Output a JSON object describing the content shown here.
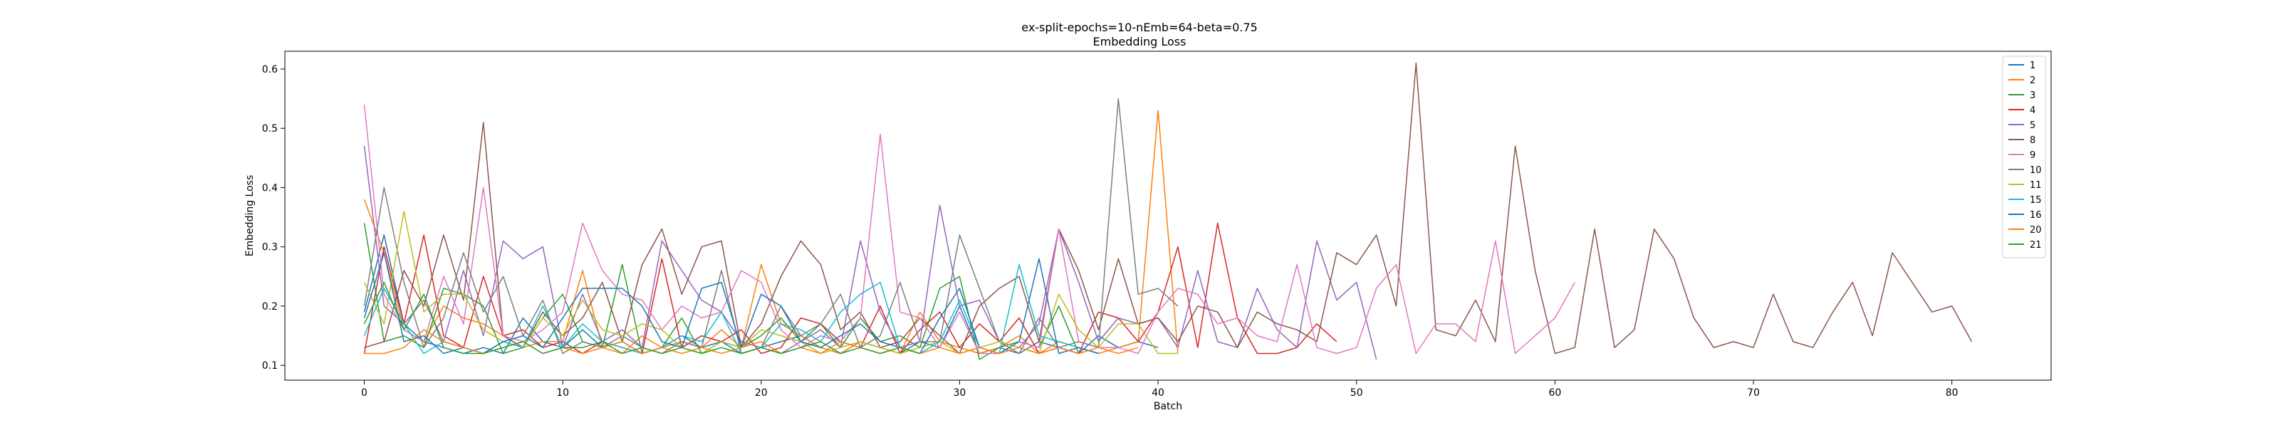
{
  "chart_data": {
    "type": "line",
    "title": "ex-split-epochs=10-nEmb=64-beta=0.75",
    "subtitle": "Embedding Loss",
    "xlabel": "Batch",
    "ylabel": "Embedding Loss",
    "xlim": [
      -4,
      85
    ],
    "ylim": [
      0.075,
      0.63
    ],
    "xticks": [
      0,
      10,
      20,
      30,
      40,
      50,
      60,
      70,
      80
    ],
    "yticks": [
      0.1,
      0.2,
      0.3,
      0.4,
      0.5,
      0.6
    ],
    "grid": false,
    "legend_position": "top-right",
    "series": [
      {
        "name": "1",
        "color": "#1f77b4",
        "values": [
          0.19,
          0.32,
          0.17,
          0.14,
          0.13,
          0.12,
          0.13,
          0.12,
          0.18,
          0.14,
          0.13,
          0.16,
          0.13,
          0.14,
          0.12,
          0.13,
          0.15,
          0.13,
          0.14,
          0.12,
          0.13,
          0.14,
          0.15,
          0.13,
          0.12,
          0.14,
          0.13,
          0.12,
          0.14,
          0.13,
          0.2,
          0.12,
          0.13,
          0.12,
          0.14,
          0.13,
          0.12,
          0.15,
          0.13,
          0.14,
          0.13
        ]
      },
      {
        "name": "2",
        "color": "#ff7f0e",
        "values": [
          0.38,
          0.29,
          0.16,
          0.14,
          0.2,
          0.18,
          0.17,
          0.15,
          0.13,
          0.14,
          0.14,
          0.26,
          0.13,
          0.12,
          0.15,
          0.13,
          0.14,
          0.13,
          0.16,
          0.13,
          0.27,
          0.17,
          0.15,
          0.13,
          0.12,
          0.14,
          0.13,
          0.12,
          0.19,
          0.14,
          0.13,
          0.12,
          0.13,
          0.15,
          0.12,
          0.14,
          0.13,
          0.12,
          0.13,
          0.14,
          0.53,
          0.12
        ]
      },
      {
        "name": "3",
        "color": "#2ca02c",
        "values": [
          0.34,
          0.14,
          0.15,
          0.13,
          0.23,
          0.22,
          0.2,
          0.12,
          0.13,
          0.18,
          0.22,
          0.14,
          0.13,
          0.27,
          0.12,
          0.13,
          0.18,
          0.12,
          0.14,
          0.13,
          0.15,
          0.18,
          0.14,
          0.17,
          0.13,
          0.18,
          0.14,
          0.15,
          0.13,
          0.23,
          0.25,
          0.11,
          0.13,
          0.14,
          0.13,
          0.2,
          0.12
        ]
      },
      {
        "name": "4",
        "color": "#d62728",
        "values": [
          0.12,
          0.3,
          0.17,
          0.32,
          0.15,
          0.13,
          0.25,
          0.15,
          0.16,
          0.13,
          0.14,
          0.12,
          0.14,
          0.13,
          0.12,
          0.28,
          0.13,
          0.15,
          0.14,
          0.16,
          0.12,
          0.13,
          0.18,
          0.17,
          0.14,
          0.13,
          0.2,
          0.12,
          0.16,
          0.19,
          0.13,
          0.17,
          0.14,
          0.18,
          0.12,
          0.13,
          0.12,
          0.19,
          0.18,
          0.14,
          0.19,
          0.3,
          0.13,
          0.34,
          0.18,
          0.12,
          0.12,
          0.13,
          0.17,
          0.14
        ]
      },
      {
        "name": "5",
        "color": "#9467bd",
        "values": [
          0.47,
          0.2,
          0.17,
          0.21,
          0.14,
          0.26,
          0.15,
          0.31,
          0.28,
          0.3,
          0.13,
          0.22,
          0.14,
          0.16,
          0.13,
          0.31,
          0.26,
          0.21,
          0.19,
          0.14,
          0.13,
          0.12,
          0.14,
          0.16,
          0.13,
          0.31,
          0.19,
          0.13,
          0.14,
          0.37,
          0.2,
          0.21,
          0.14,
          0.13,
          0.17,
          0.33,
          0.24,
          0.14,
          0.18,
          0.17,
          0.18,
          0.13,
          0.26,
          0.14,
          0.13,
          0.23,
          0.16,
          0.13,
          0.31,
          0.21,
          0.24,
          0.11
        ]
      },
      {
        "name": "8",
        "color": "#8c564b",
        "values": [
          0.13,
          0.14,
          0.26,
          0.2,
          0.32,
          0.21,
          0.51,
          0.15,
          0.13,
          0.19,
          0.15,
          0.18,
          0.24,
          0.14,
          0.27,
          0.33,
          0.22,
          0.3,
          0.31,
          0.13,
          0.17,
          0.25,
          0.31,
          0.27,
          0.16,
          0.19,
          0.13,
          0.14,
          0.18,
          0.15,
          0.12,
          0.2,
          0.23,
          0.25,
          0.14,
          0.33,
          0.26,
          0.16,
          0.28,
          0.17,
          0.18,
          0.14,
          0.2,
          0.19,
          0.13,
          0.19,
          0.17,
          0.16,
          0.14,
          0.29,
          0.27,
          0.32,
          0.2,
          0.61,
          0.16,
          0.15,
          0.21,
          0.14,
          0.47,
          0.26,
          0.12,
          0.13,
          0.33,
          0.13,
          0.16,
          0.33,
          0.28,
          0.18,
          0.13,
          0.14,
          0.13,
          0.22,
          0.14,
          0.13,
          0.19,
          0.24,
          0.15,
          0.29,
          0.24,
          0.19,
          0.2,
          0.14
        ]
      },
      {
        "name": "9",
        "color": "#e377c2",
        "values": [
          0.54,
          0.22,
          0.16,
          0.14,
          0.25,
          0.17,
          0.4,
          0.15,
          0.14,
          0.16,
          0.19,
          0.34,
          0.26,
          0.22,
          0.21,
          0.16,
          0.2,
          0.18,
          0.19,
          0.26,
          0.24,
          0.16,
          0.13,
          0.15,
          0.14,
          0.18,
          0.49,
          0.19,
          0.18,
          0.13,
          0.19,
          0.12,
          0.12,
          0.14,
          0.13,
          0.33,
          0.14,
          0.13,
          0.13,
          0.12,
          0.19,
          0.23,
          0.22,
          0.17,
          0.18,
          0.15,
          0.14,
          0.27,
          0.13,
          0.12,
          0.13,
          0.23,
          0.27,
          0.12,
          0.17,
          0.17,
          0.14,
          0.31,
          0.12,
          0.15,
          0.18,
          0.24
        ]
      },
      {
        "name": "10",
        "color": "#7f7f7f",
        "values": [
          0.2,
          0.4,
          0.24,
          0.13,
          0.18,
          0.29,
          0.19,
          0.25,
          0.15,
          0.21,
          0.12,
          0.14,
          0.13,
          0.15,
          0.13,
          0.12,
          0.14,
          0.13,
          0.26,
          0.12,
          0.13,
          0.2,
          0.15,
          0.17,
          0.22,
          0.13,
          0.15,
          0.24,
          0.14,
          0.14,
          0.32,
          0.23,
          0.14,
          0.12,
          0.18,
          0.13,
          0.14,
          0.13,
          0.55,
          0.22,
          0.23,
          0.2
        ]
      },
      {
        "name": "11",
        "color": "#bcbd22",
        "values": [
          0.24,
          0.17,
          0.36,
          0.19,
          0.22,
          0.22,
          0.16,
          0.14,
          0.13,
          0.18,
          0.15,
          0.21,
          0.16,
          0.15,
          0.17,
          0.16,
          0.13,
          0.12,
          0.14,
          0.13,
          0.16,
          0.15,
          0.14,
          0.12,
          0.13,
          0.14,
          0.13,
          0.12,
          0.13,
          0.14,
          0.12,
          0.13,
          0.14,
          0.13,
          0.12,
          0.22,
          0.16,
          0.13,
          0.17,
          0.17,
          0.12,
          0.12
        ]
      },
      {
        "name": "15",
        "color": "#17becf",
        "values": [
          0.15,
          0.23,
          0.17,
          0.12,
          0.14,
          0.13,
          0.12,
          0.14,
          0.13,
          0.2,
          0.13,
          0.17,
          0.14,
          0.13,
          0.12,
          0.13,
          0.15,
          0.14,
          0.19,
          0.12,
          0.13,
          0.17,
          0.16,
          0.14,
          0.19,
          0.22,
          0.24,
          0.13,
          0.12,
          0.14,
          0.21,
          0.13,
          0.12,
          0.27,
          0.15,
          0.14,
          0.13,
          0.12
        ]
      },
      {
        "name": "16",
        "color": "#1f77b4",
        "values": [
          0.18,
          0.29,
          0.14,
          0.15,
          0.12,
          0.13,
          0.12,
          0.14,
          0.15,
          0.13,
          0.18,
          0.23,
          0.23,
          0.23,
          0.2,
          0.14,
          0.13,
          0.23,
          0.24,
          0.13,
          0.22,
          0.2,
          0.14,
          0.13,
          0.15,
          0.17,
          0.14,
          0.13,
          0.12,
          0.18,
          0.23,
          0.13,
          0.12,
          0.14,
          0.28,
          0.12,
          0.13,
          0.12
        ]
      },
      {
        "name": "20",
        "color": "#ff7f0e",
        "values": [
          0.12,
          0.12,
          0.13,
          0.16,
          0.14,
          0.13,
          0.12,
          0.13,
          0.14,
          0.12,
          0.13,
          0.12,
          0.13,
          0.14,
          0.12,
          0.13,
          0.12,
          0.13,
          0.12,
          0.13,
          0.14,
          0.12,
          0.13,
          0.12,
          0.14,
          0.13,
          0.12,
          0.13,
          0.12,
          0.13,
          0.12,
          0.13,
          0.12,
          0.13,
          0.12,
          0.13,
          0.12,
          0.13,
          0.12,
          0.13
        ]
      },
      {
        "name": "21",
        "color": "#2ca02c",
        "values": [
          0.17,
          0.24,
          0.16,
          0.22,
          0.13,
          0.12,
          0.12,
          0.13,
          0.14,
          0.12,
          0.13,
          0.13,
          0.14,
          0.12,
          0.13,
          0.12,
          0.13,
          0.12,
          0.13,
          0.12,
          0.13,
          0.12,
          0.13,
          0.14,
          0.12,
          0.13,
          0.12,
          0.13,
          0.12
        ]
      }
    ]
  }
}
